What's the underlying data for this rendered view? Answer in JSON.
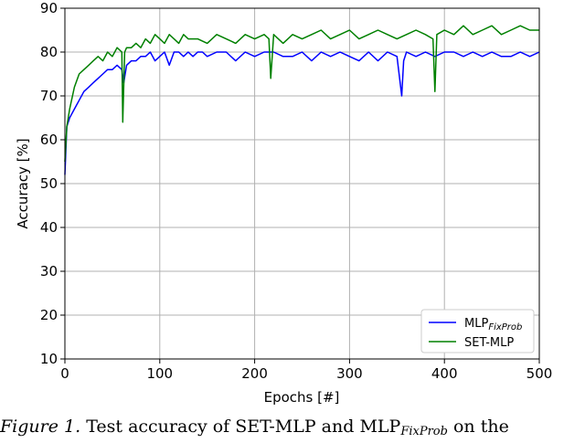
{
  "chart_data": {
    "type": "line",
    "xlabel": "Epochs [#]",
    "ylabel": "Accuracy [%]",
    "xlim": [
      0,
      500
    ],
    "ylim": [
      10,
      90
    ],
    "xticks": [
      0,
      100,
      200,
      300,
      400,
      500
    ],
    "yticks": [
      10,
      20,
      30,
      40,
      50,
      60,
      70,
      80,
      90
    ],
    "grid": true,
    "legend_position": "lower-right",
    "series": [
      {
        "name": "MLP",
        "name_subscript": "FixProb",
        "color": "#0000ff",
        "x": [
          0,
          2,
          5,
          10,
          15,
          20,
          25,
          30,
          35,
          40,
          45,
          50,
          55,
          60,
          62,
          65,
          70,
          75,
          80,
          85,
          90,
          95,
          100,
          105,
          110,
          115,
          120,
          125,
          130,
          135,
          140,
          145,
          150,
          160,
          170,
          180,
          190,
          200,
          210,
          220,
          230,
          240,
          250,
          260,
          270,
          280,
          290,
          300,
          310,
          320,
          330,
          340,
          350,
          355,
          357,
          360,
          370,
          380,
          390,
          400,
          410,
          420,
          430,
          440,
          450,
          460,
          470,
          480,
          490,
          500
        ],
        "y": [
          52,
          63,
          65,
          67,
          69,
          71,
          72,
          73,
          74,
          75,
          76,
          76,
          77,
          76,
          73,
          77,
          78,
          78,
          79,
          79,
          80,
          78,
          79,
          80,
          77,
          80,
          80,
          79,
          80,
          79,
          80,
          80,
          79,
          80,
          80,
          78,
          80,
          79,
          80,
          80,
          79,
          79,
          80,
          78,
          80,
          79,
          80,
          79,
          78,
          80,
          78,
          80,
          79,
          70,
          78,
          80,
          79,
          80,
          79,
          80,
          80,
          79,
          80,
          79,
          80,
          79,
          79,
          80,
          79,
          80
        ]
      },
      {
        "name": "SET-MLP",
        "color": "#008000",
        "x": [
          0,
          2,
          5,
          10,
          15,
          20,
          25,
          30,
          35,
          40,
          45,
          50,
          55,
          60,
          61,
          63,
          65,
          70,
          75,
          80,
          85,
          90,
          95,
          100,
          105,
          110,
          115,
          120,
          125,
          130,
          140,
          150,
          160,
          170,
          180,
          190,
          200,
          210,
          215,
          217,
          220,
          230,
          240,
          250,
          260,
          270,
          280,
          290,
          300,
          310,
          320,
          330,
          340,
          350,
          360,
          370,
          380,
          388,
          390,
          392,
          400,
          410,
          420,
          430,
          440,
          450,
          460,
          470,
          480,
          490,
          500
        ],
        "y": [
          55,
          63,
          67,
          72,
          75,
          76,
          77,
          78,
          79,
          78,
          80,
          79,
          81,
          80,
          64,
          80,
          81,
          81,
          82,
          81,
          83,
          82,
          84,
          83,
          82,
          84,
          83,
          82,
          84,
          83,
          83,
          82,
          84,
          83,
          82,
          84,
          83,
          84,
          83,
          74,
          84,
          82,
          84,
          83,
          84,
          85,
          83,
          84,
          85,
          83,
          84,
          85,
          84,
          83,
          84,
          85,
          84,
          83,
          71,
          84,
          85,
          84,
          86,
          84,
          85,
          86,
          84,
          85,
          86,
          85,
          85
        ]
      }
    ]
  },
  "caption": {
    "figure_label": "Figure 1.",
    "text_part1": "Test accuracy of SET-MLP and MLP",
    "subscript": "FixProb",
    "text_part2": "on the"
  }
}
